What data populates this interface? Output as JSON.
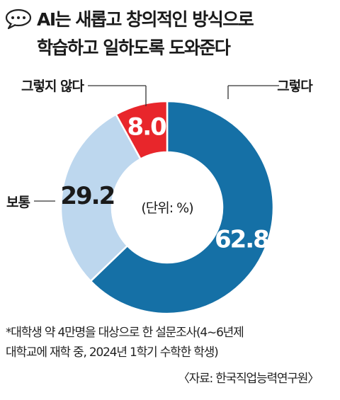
{
  "header": {
    "icon": "speech-bubble-icon",
    "title_line1": "AI는 새롭고 창의적인 방식으로",
    "title_line2": "학습하고 일하도록 도와준다"
  },
  "chart_data": {
    "type": "pie",
    "donut": true,
    "center_label": "(단위: %)",
    "slices": [
      {
        "label": "그렇다",
        "value": 62.8,
        "value_label": "62.8",
        "color": "#1570a6"
      },
      {
        "label": "보통",
        "value": 29.2,
        "value_label": "29.2",
        "color": "#bdd7ee"
      },
      {
        "label": "그렇지 않다",
        "value": 8.0,
        "value_label": "8.0",
        "color": "#e8262b"
      }
    ]
  },
  "footnote": {
    "line1": "*대학생 약 4만명을 대상으로 한 설문조사(4~6년제",
    "line2": "대학교에 재학 중, 2024년 1학기 수학한 학생)"
  },
  "source": "〈자료: 한국직업능력연구원〉"
}
